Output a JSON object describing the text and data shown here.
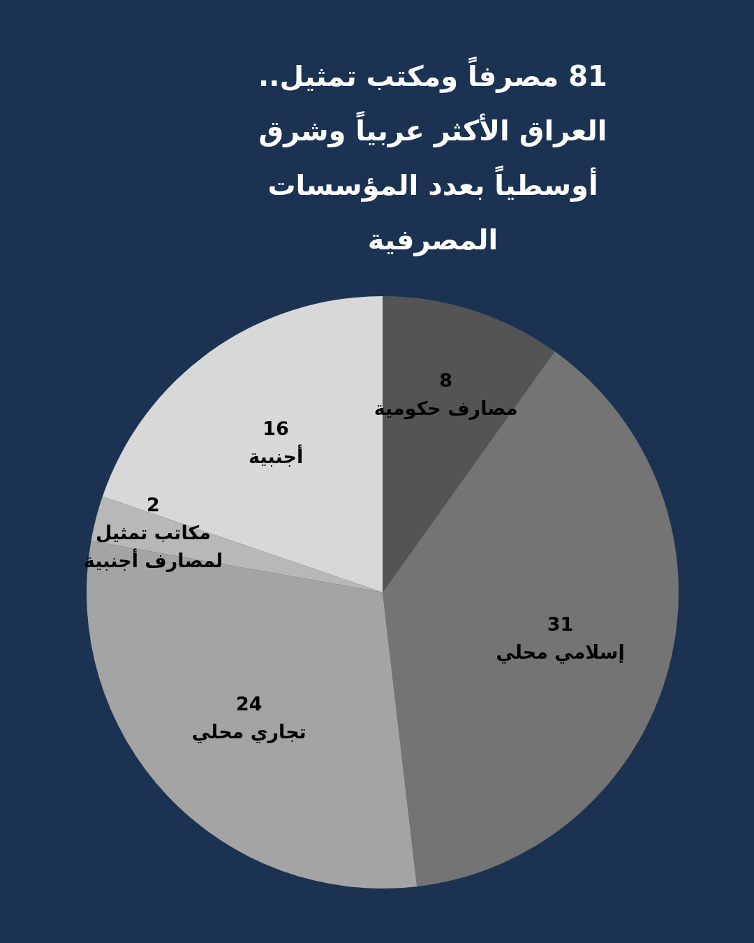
{
  "chart_data": {
    "type": "pie",
    "title": "81 مصرفاً ومكتب تمثيل.. العراق الأكثر عربياً وشرق أوسطياً بعدد المؤسسات المصرفية",
    "categories": [
      "مصارف حكومية",
      "إسلامي محلي",
      "تجاري محلي",
      "مكاتب تمثيل لمصارف أجنبية",
      "أجنبية"
    ],
    "values": [
      8,
      31,
      24,
      2,
      16
    ],
    "colors": [
      "#545454",
      "#747474",
      "#a4a4a4",
      "#b8b8b8",
      "#d8d8d8"
    ],
    "data_labels": true
  }
}
